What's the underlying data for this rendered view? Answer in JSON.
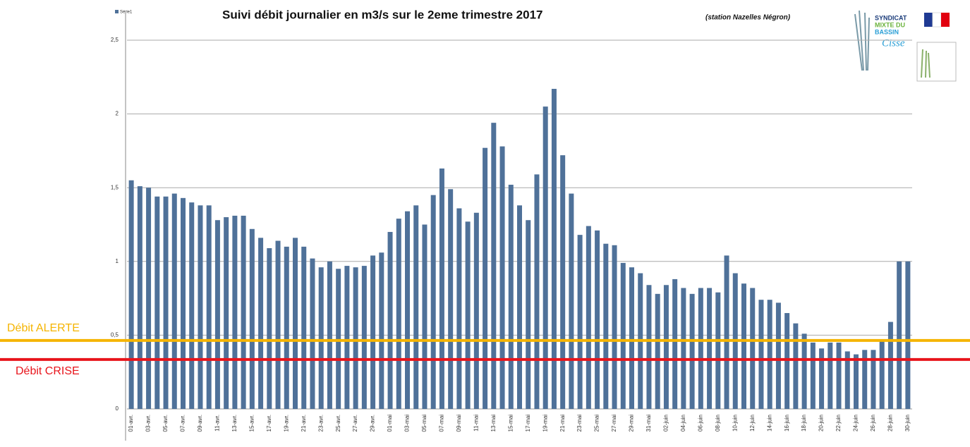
{
  "chart_data": {
    "type": "bar",
    "title": "Suivi débit journalier en m3/s sur le 2eme trimestre 2017",
    "subtitle": "(station Nazelles Négron)",
    "legend": "Série1",
    "logo_text": [
      "SYNDICAT",
      "MIXTE DU",
      "BASSIN",
      "Cisse"
    ],
    "color": "#4f7199",
    "grid": true,
    "categories": [
      "01-avr.",
      null,
      "03-avr.",
      null,
      "05-avr.",
      null,
      "07-avr.",
      null,
      "09-avr.",
      null,
      "11-avr.",
      null,
      "13-avr.",
      null,
      "15-avr.",
      null,
      "17-avr.",
      null,
      "19-avr.",
      null,
      "21-avr.",
      null,
      "23-avr.",
      null,
      "25-avr.",
      null,
      "27-avr.",
      null,
      "29-avr.",
      null,
      "01-mai",
      null,
      "03-mai",
      null,
      "05-mai",
      null,
      "07-mai",
      null,
      "09-mai",
      null,
      "11-mai",
      null,
      "13-mai",
      null,
      "15-mai",
      null,
      "17-mai",
      null,
      "19-mai",
      null,
      "21-mai",
      null,
      "23-mai",
      null,
      "25-mai",
      null,
      "27-mai",
      null,
      "29-mai",
      null,
      "31-mai",
      null,
      "02-juin",
      null,
      "04-juin",
      null,
      "06-juin",
      null,
      "08-juin",
      null,
      "10-juin",
      null,
      "12-juin",
      null,
      "14-juin",
      null,
      "16-juin",
      null,
      "18-juin",
      null,
      "20-juin",
      null,
      "22-juin",
      null,
      "24-juin",
      null,
      "26-juin",
      null,
      "28-juin",
      null,
      "30-juin"
    ],
    "values": [
      1.55,
      1.51,
      1.5,
      1.44,
      1.44,
      1.46,
      1.43,
      1.4,
      1.38,
      1.38,
      1.28,
      1.3,
      1.31,
      1.31,
      1.22,
      1.16,
      1.09,
      1.14,
      1.1,
      1.16,
      1.1,
      1.02,
      0.96,
      1.0,
      0.95,
      0.97,
      0.96,
      0.97,
      1.04,
      1.06,
      1.2,
      1.29,
      1.34,
      1.38,
      1.25,
      1.45,
      1.63,
      1.49,
      1.36,
      1.27,
      1.33,
      1.77,
      1.94,
      1.78,
      1.52,
      1.38,
      1.28,
      1.59,
      2.05,
      2.17,
      1.72,
      1.46,
      1.18,
      1.24,
      1.21,
      1.12,
      1.11,
      0.99,
      0.96,
      0.92,
      0.84,
      0.78,
      0.84,
      0.88,
      0.82,
      0.78,
      0.82,
      0.82,
      0.79,
      1.04,
      0.92,
      0.85,
      0.82,
      0.74,
      0.74,
      0.72,
      0.65,
      0.58,
      0.51,
      0.45,
      0.41,
      0.45,
      0.45,
      0.39,
      0.37,
      0.4,
      0.4,
      0.47,
      0.59,
      1.0,
      1.0
    ],
    "ylim": [
      0,
      2.5
    ],
    "yticks": [
      0,
      {
        "value": 0.5,
        "label": "0,5"
      },
      1,
      {
        "value": 1.5,
        "label": "1,5"
      },
      2,
      {
        "value": 2.5,
        "label": "2,5"
      }
    ],
    "reference_lines": [
      {
        "label": "Débit ALERTE",
        "value": 0.464,
        "color": "#f5b400"
      },
      {
        "label": "Débit CRISE",
        "value": 0.335,
        "color": "#e8141b"
      }
    ]
  }
}
